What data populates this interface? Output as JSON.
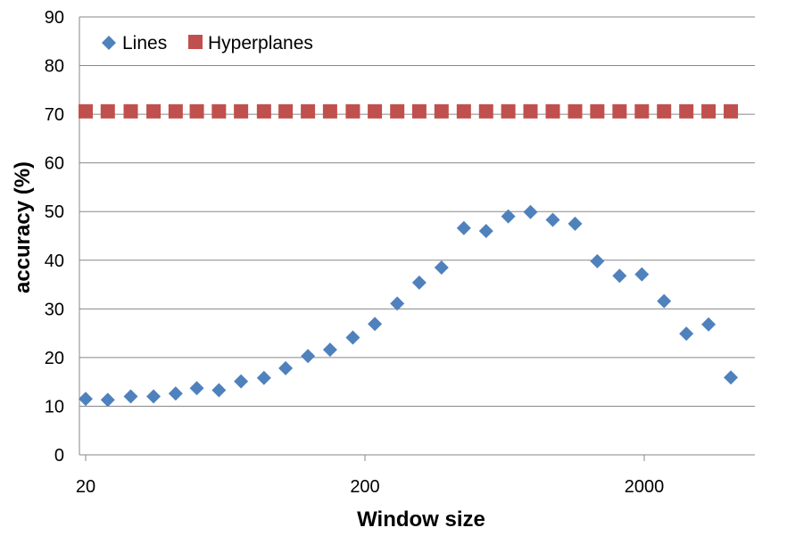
{
  "chart_data": {
    "type": "scatter",
    "title": "",
    "xlabel": "Window size",
    "ylabel": "accuracy (%)",
    "xscale": "log",
    "xlim": [
      20,
      5000
    ],
    "ylim": [
      0,
      90
    ],
    "xticks": [
      20,
      200,
      2000
    ],
    "xtick_labels": [
      "20",
      "200",
      "2000"
    ],
    "yticks": [
      0,
      10,
      20,
      30,
      40,
      50,
      60,
      70,
      80,
      90
    ],
    "ytick_labels": [
      "0",
      "10",
      "20",
      "30",
      "40",
      "50",
      "60",
      "70",
      "80",
      "90"
    ],
    "grid": true,
    "legend_position": "top-left",
    "series": [
      {
        "name": "Lines",
        "marker": "diamond",
        "color": "#4F81BD",
        "x": [
          20,
          24,
          29,
          35,
          42,
          50,
          60,
          72,
          87,
          104,
          125,
          150,
          181,
          217,
          261,
          313,
          376,
          452,
          543,
          652,
          783,
          941,
          1131,
          1358,
          1632,
          1961,
          2355,
          2830,
          3399,
          4084
        ],
        "y": [
          11.5,
          11.3,
          12,
          12,
          12.6,
          13.7,
          13.3,
          15.1,
          15.8,
          17.8,
          20.3,
          21.6,
          24.1,
          26.9,
          31.1,
          35.4,
          38.5,
          46.6,
          46,
          49,
          49.9,
          48.3,
          47.5,
          39.8,
          36.8,
          37.1,
          31.6,
          24.9,
          26.8,
          15.9
        ]
      },
      {
        "name": "Hyperplanes",
        "marker": "square",
        "color": "#C0504D",
        "x": [
          20,
          24,
          29,
          35,
          42,
          50,
          60,
          72,
          87,
          104,
          125,
          150,
          181,
          217,
          261,
          313,
          376,
          452,
          543,
          652,
          783,
          941,
          1131,
          1358,
          1632,
          1961,
          2355,
          2830,
          3399,
          4084
        ],
        "y": [
          70.6,
          70.6,
          70.6,
          70.6,
          70.6,
          70.6,
          70.6,
          70.6,
          70.6,
          70.6,
          70.6,
          70.6,
          70.6,
          70.6,
          70.6,
          70.6,
          70.6,
          70.6,
          70.6,
          70.6,
          70.6,
          70.6,
          70.6,
          70.6,
          70.6,
          70.6,
          70.6,
          70.6,
          70.6,
          70.6
        ]
      }
    ]
  }
}
